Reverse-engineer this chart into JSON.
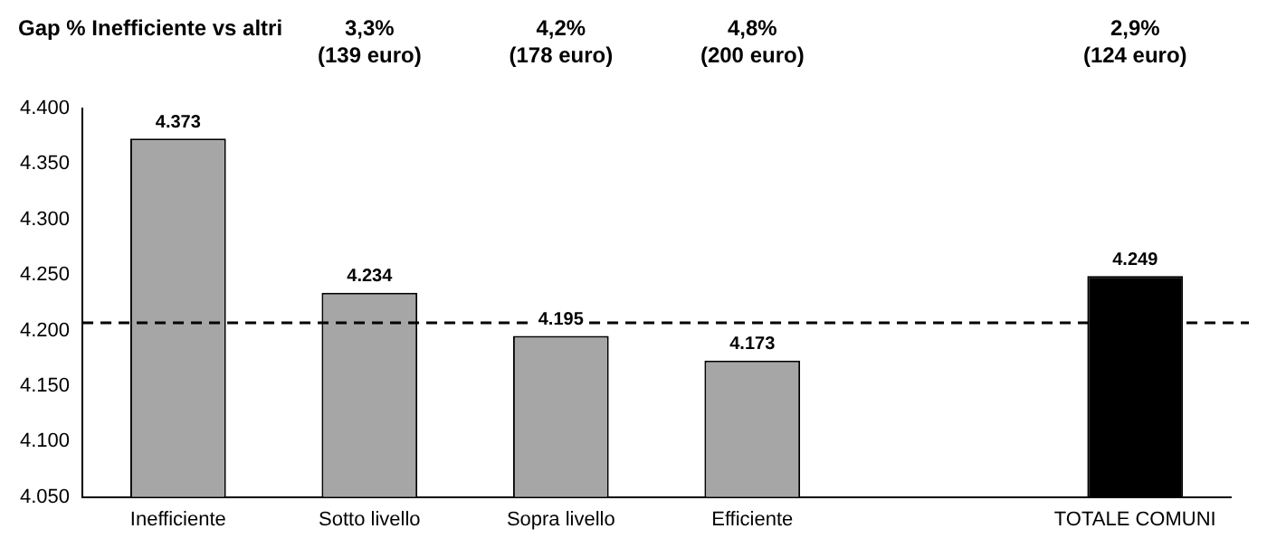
{
  "chart_data": {
    "type": "bar",
    "title": "Gap % Inefficiente vs altri",
    "categories": [
      "Inefficiente",
      "Sotto livello",
      "Sopra livello",
      "Efficiente",
      null,
      "TOTALE COMUNI"
    ],
    "values": [
      4373,
      4234,
      4195,
      4173,
      null,
      4249
    ],
    "colors": [
      "#a6a6a6",
      "#a6a6a6",
      "#a6a6a6",
      "#a6a6a6",
      "#a6a6a6",
      "#000000"
    ],
    "value_labels": [
      "4.373",
      "4.234",
      "4.195",
      "4.173",
      null,
      "4.249"
    ],
    "ylim": [
      4050,
      4400
    ],
    "yticks": [
      {
        "value": 4050,
        "label": "4.050"
      },
      {
        "value": 4100,
        "label": "4.100"
      },
      {
        "value": 4150,
        "label": "4.150"
      },
      {
        "value": 4200,
        "label": "4.200"
      },
      {
        "value": 4250,
        "label": "4.250"
      },
      {
        "value": 4300,
        "label": "4.300"
      },
      {
        "value": 4350,
        "label": "4.350"
      },
      {
        "value": 4400,
        "label": "4.400"
      }
    ],
    "ref_lines": [
      {
        "axis": "y",
        "value": 4207,
        "color": "#000000",
        "line_style": "dashed"
      }
    ],
    "annotations": [
      "3,3%\n(139 euro)",
      "4,2%\n(178 euro)",
      "4,8%\n(200 euro)",
      "2,9%\n(124 euro)"
    ],
    "grid": false,
    "legend": false
  }
}
